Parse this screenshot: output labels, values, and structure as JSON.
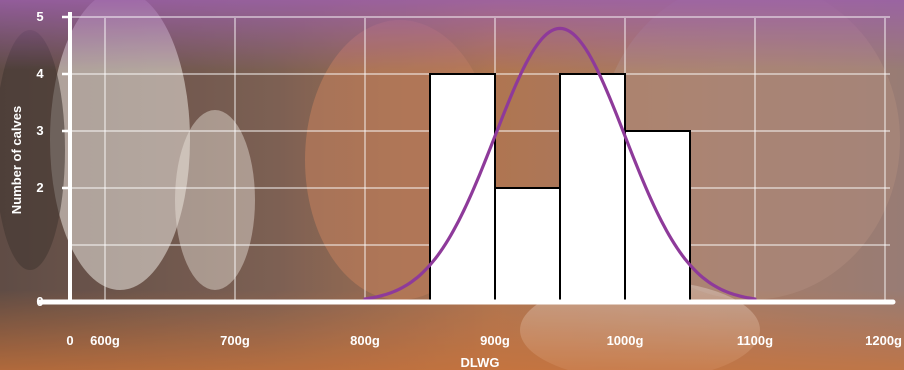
{
  "chart_data": {
    "type": "bar",
    "subtype": "histogram",
    "title": "",
    "xlabel": "DLWG",
    "ylabel": "Number of calves",
    "x_origin_label": "0",
    "x_ticks": [
      {
        "value": 600,
        "label": "600g"
      },
      {
        "value": 700,
        "label": "700g"
      },
      {
        "value": 800,
        "label": "800g"
      },
      {
        "value": 900,
        "label": "900g"
      },
      {
        "value": 1000,
        "label": "1000g"
      },
      {
        "value": 1100,
        "label": "1100g"
      },
      {
        "value": 1200,
        "label": "1200g"
      }
    ],
    "y_ticks": [
      {
        "value": 0,
        "label": "0"
      },
      {
        "value": 2,
        "label": "2"
      },
      {
        "value": 3,
        "label": "3"
      },
      {
        "value": 4,
        "label": "4"
      },
      {
        "value": 5,
        "label": "5"
      }
    ],
    "xlim": [
      560,
      1200
    ],
    "ylim": [
      0,
      5
    ],
    "bins": [
      {
        "start": 850,
        "end": 900,
        "count": 4
      },
      {
        "start": 900,
        "end": 950,
        "count": 2
      },
      {
        "start": 950,
        "end": 1000,
        "count": 4
      },
      {
        "start": 1000,
        "end": 1050,
        "count": 3
      }
    ],
    "normal_curve": {
      "mean": 950,
      "sd": 50,
      "peak": 4.8,
      "x_range": [
        800,
        1100
      ]
    },
    "grid": true,
    "colors": {
      "bars_fill": "#ffffff",
      "bars_stroke": "#000000",
      "curve": "#8e3a9a",
      "axis": "#ffffff",
      "grid": "#ffffff"
    },
    "background": "photo of calves"
  }
}
